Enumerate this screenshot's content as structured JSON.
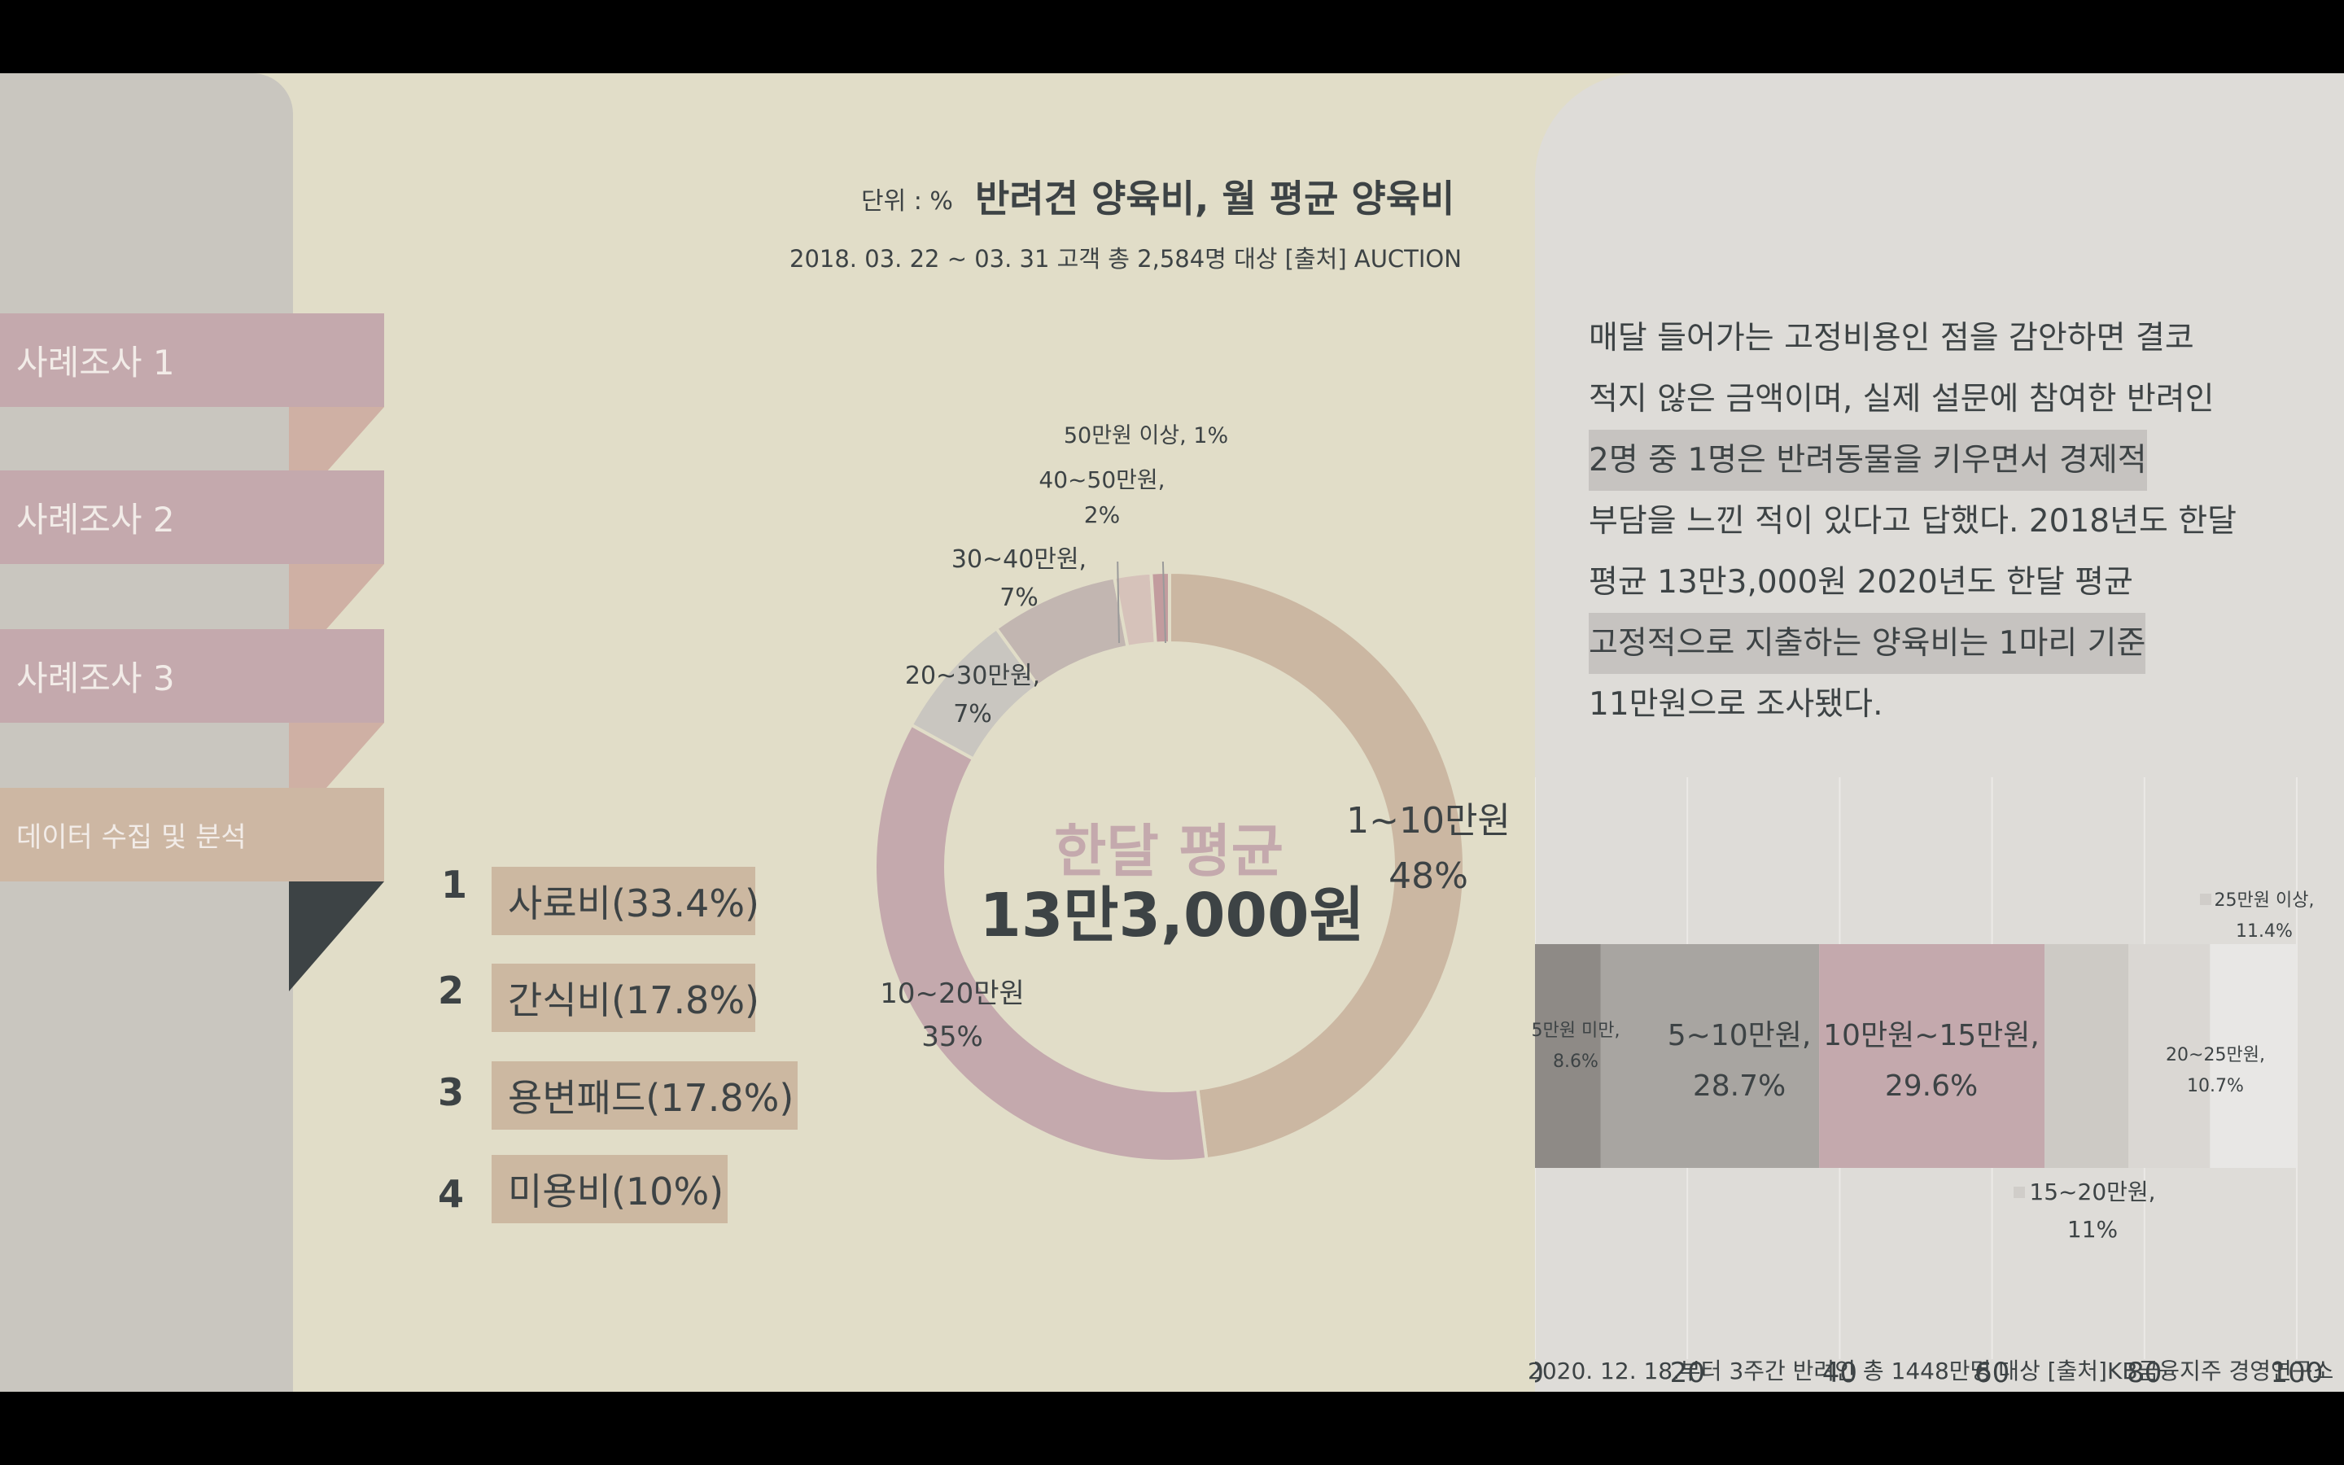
{
  "sidebar": {
    "tabs": [
      {
        "label": "사례조사 1"
      },
      {
        "label": "사례조사 2"
      },
      {
        "label": "사례조사 3"
      },
      {
        "label": "데이터 수집 및 분석"
      }
    ]
  },
  "header": {
    "unit": "단위 : %",
    "title": "반려견 양육비, 월 평균 양육비",
    "subtitle": "2018. 03. 22 ~ 03. 31 고객 총 2,584명 대상 [출처] AUCTION"
  },
  "donut": {
    "center_label": "한달 평균",
    "center_value": "13만3,000원"
  },
  "ranking": [
    {
      "num": "1",
      "label": "사료비(33.4%)"
    },
    {
      "num": "2",
      "label": "간식비(17.8%)"
    },
    {
      "num": "3",
      "label": "용변패드(17.8%)"
    },
    {
      "num": "4",
      "label": "미용비(10%)"
    }
  ],
  "paragraph": {
    "lines": [
      "매달 들어가는 고정비용인 점을 감안하면 결코",
      "적지 않은 금액이며, 실제 설문에 참여한 반려인",
      "2명 중 1명은 반려동물을 키우면서 경제적",
      "부담을 느낀 적이 있다고 답했다. 2018년도 한달",
      "평균 13만3,000원 2020년도 한달 평균",
      "고정적으로 지출하는 양육비는 1마리 기준",
      "11만원으로 조사됐다."
    ]
  },
  "bar_source": "2020. 12. 18.부터 3주간 반려인 총 1448만명 대상 [출처]KB금융지주 경영연구소",
  "chart_data": [
    {
      "type": "pie",
      "title": "반려견 양육비, 월 평균 양육비",
      "unit": "단위 : %",
      "slices": [
        {
          "label": "1~10만원",
          "label2": "48%",
          "value": 48,
          "color": "#cbb7a2"
        },
        {
          "label": "10~20만원",
          "label2": "35%",
          "value": 35,
          "color": "#c4a9ad"
        },
        {
          "label": "20~30만원,",
          "label2": "7%",
          "value": 7,
          "color": "#c9c6c0"
        },
        {
          "label": "30~40만원,",
          "label2": "7%",
          "value": 7,
          "color": "#c2b6b1"
        },
        {
          "label": "40~50만원,",
          "label2": "2%",
          "value": 2,
          "color": "#d6c2ba"
        },
        {
          "label": "50만원 이상, 1%",
          "label2": "",
          "value": 1,
          "color": "#c29c9e"
        }
      ]
    },
    {
      "type": "bar",
      "orientation": "horizontal-stacked",
      "xlim": [
        0,
        100
      ],
      "x_ticks": [
        "0",
        "20",
        "40",
        "60",
        "80",
        "100"
      ],
      "series": [
        {
          "label": "5만원 미만,",
          "label2": "8.6%",
          "value": 8.6,
          "color": "#8e8a86"
        },
        {
          "label": "5~10만원,",
          "label2": "28.7%",
          "value": 28.7,
          "color": "#a8a5a1"
        },
        {
          "label": "10만원~15만원,",
          "label2": "29.6%",
          "value": 29.6,
          "color": "#c4a9ad"
        },
        {
          "label": "15~20만원,",
          "label2": "11%",
          "value": 11,
          "color": "#cdcac5"
        },
        {
          "label": "20~25만원,",
          "label2": "10.7%",
          "value": 10.7,
          "color": "#dad7d3"
        },
        {
          "label": "25만원 이상,",
          "label2": "11.4%",
          "value": 11.4,
          "color": "#e8e7e5"
        }
      ]
    }
  ]
}
